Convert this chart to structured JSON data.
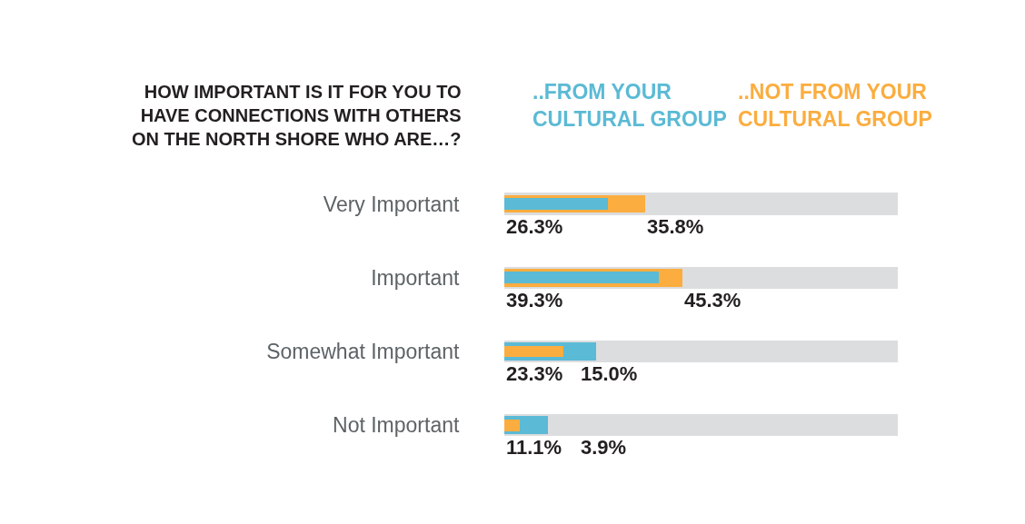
{
  "chart_data": {
    "type": "bar",
    "orientation": "horizontal",
    "title": "HOW IMPORTANT IS IT FOR YOU TO HAVE CONNECTIONS WITH OTHERS ON THE NORTH SHORE WHO ARE…?",
    "categories": [
      "Very Important",
      "Important",
      "Somewhat Important",
      "Not Important"
    ],
    "tick_labels": "y",
    "legend": false,
    "series": [
      {
        "color": "#dcdddf",
        "values": [
          100,
          100,
          100,
          100
        ]
      },
      {
        "name": "..FROM YOUR CULTURAL GROUP",
        "color": "#5bbad5",
        "values": [
          26.3,
          39.3,
          23.3,
          11.1
        ],
        "value_labels": [
          "26.3%",
          "39.3%",
          "23.3%",
          "11.1%"
        ]
      },
      {
        "name": "..NOT FROM YOUR CULTURAL GROUP",
        "color": "#fbad3f",
        "values": [
          35.8,
          45.3,
          15.0,
          3.9
        ],
        "value_labels": [
          "35.8%",
          "45.3%",
          "15.0%",
          "3.9%"
        ]
      }
    ]
  }
}
